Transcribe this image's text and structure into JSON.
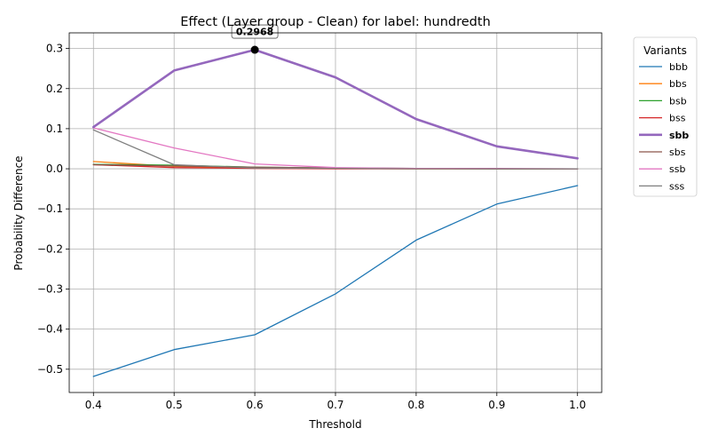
{
  "chart_data": {
    "type": "line",
    "title": "Effect (Layer group - Clean) for label: hundredth",
    "xlabel": "Threshold",
    "ylabel": "Probability Difference",
    "xlim": [
      0.37,
      1.03
    ],
    "ylim": [
      -0.558,
      0.339
    ],
    "x": [
      0.4,
      0.5,
      0.6,
      0.7,
      0.8,
      0.9,
      1.0
    ],
    "xticks": [
      "0.4",
      "0.5",
      "0.6",
      "0.7",
      "0.8",
      "0.9",
      "1.0"
    ],
    "yticks": [
      "−0.5",
      "−0.4",
      "−0.3",
      "−0.2",
      "−0.1",
      "0.0",
      "0.1",
      "0.2",
      "0.3"
    ],
    "ytick_values": [
      -0.5,
      -0.4,
      -0.3,
      -0.2,
      -0.1,
      0.0,
      0.1,
      0.2,
      0.3
    ],
    "grid": true,
    "legend": {
      "title": "Variants",
      "placement": "outside-right"
    },
    "series": [
      {
        "name": "bbb",
        "color": "#1f77b4",
        "highlight": false,
        "values": [
          -0.518,
          -0.451,
          -0.414,
          -0.312,
          -0.178,
          -0.088,
          -0.042
        ]
      },
      {
        "name": "bbs",
        "color": "#ff7f0e",
        "highlight": false,
        "values": [
          0.018,
          0.006,
          0.003,
          0.001,
          0.0,
          0.0,
          0.0
        ]
      },
      {
        "name": "bsb",
        "color": "#2ca02c",
        "highlight": false,
        "values": [
          0.011,
          0.009,
          0.004,
          0.002,
          0.001,
          0.0,
          0.0
        ]
      },
      {
        "name": "bss",
        "color": "#d62728",
        "highlight": false,
        "values": [
          0.01,
          0.003,
          0.001,
          0.0,
          0.0,
          0.0,
          0.0
        ]
      },
      {
        "name": "sbb",
        "color": "#9467bd",
        "highlight": true,
        "values": [
          0.104,
          0.245,
          0.2968,
          0.228,
          0.124,
          0.056,
          0.026
        ]
      },
      {
        "name": "sbs",
        "color": "#8c564b",
        "highlight": false,
        "values": [
          0.01,
          0.007,
          0.004,
          0.002,
          0.001,
          0.0,
          0.0
        ]
      },
      {
        "name": "ssb",
        "color": "#e377c2",
        "highlight": false,
        "values": [
          0.102,
          0.052,
          0.012,
          0.003,
          0.001,
          0.001,
          0.0
        ]
      },
      {
        "name": "sss",
        "color": "#7f7f7f",
        "highlight": false,
        "values": [
          0.097,
          0.01,
          0.002,
          0.001,
          0.0,
          0.0,
          0.0
        ]
      }
    ],
    "annotation": {
      "series": "sbb",
      "x": 0.6,
      "y": 0.2968,
      "label": "0.2968"
    }
  }
}
